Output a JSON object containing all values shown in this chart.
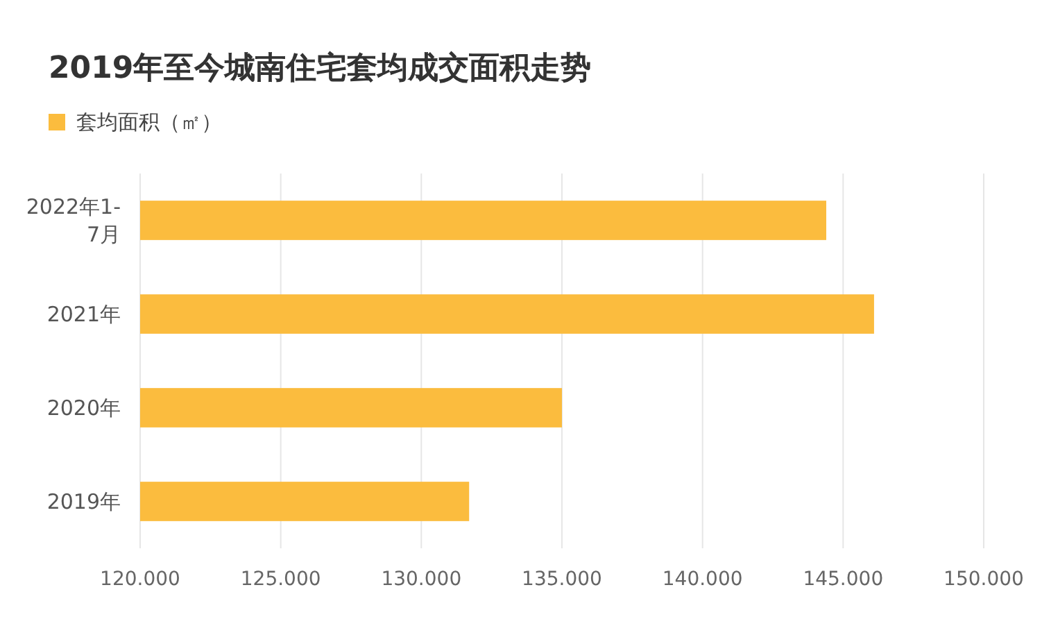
{
  "chart_data": {
    "type": "bar",
    "orientation": "horizontal",
    "title": "2019年至今城南住宅套均成交面积走势",
    "categories": [
      "2022年1-7月",
      "2021年",
      "2020年",
      "2019年"
    ],
    "series": [
      {
        "name": "套均面积（㎡）",
        "color": "#fbbc3e",
        "values": [
          144.4,
          146.1,
          135.0,
          131.7
        ]
      }
    ],
    "xlim": [
      120,
      150
    ],
    "xticks": [
      {
        "value": 120,
        "label": "120.000"
      },
      {
        "value": 125,
        "label": "125.000"
      },
      {
        "value": 130,
        "label": "130.000"
      },
      {
        "value": 135,
        "label": "135.000"
      },
      {
        "value": 140,
        "label": "140.000"
      },
      {
        "value": 145,
        "label": "145.000"
      },
      {
        "value": 150,
        "label": "150.000"
      }
    ],
    "grid": "x",
    "legend": "top left"
  }
}
